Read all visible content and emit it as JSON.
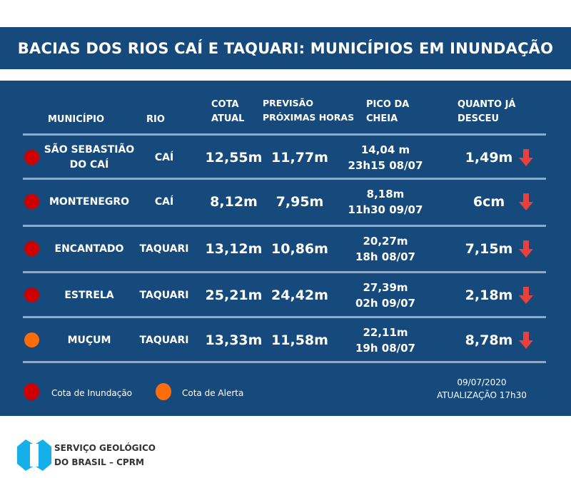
{
  "title": "BACIAS DOS RIOS CAÍ E TAQUARI: MUNICÍPIOS EM INUNDAÇÃO",
  "headers": {
    "municipio": "MUNICÍPIO",
    "rio": "RIO",
    "cota_1": "COTA",
    "cota_2": "ATUAL",
    "prev_1": "PREVISÃO",
    "prev_2": "PRÓXIMAS HORAS",
    "pico_1": "PICO DA",
    "pico_2": "CHEIA",
    "quanto_1": "QUANTO JÁ",
    "quanto_2": "DESCEU"
  },
  "rows": [
    {
      "municipio_1": "SÃO SEBASTIÃO",
      "municipio_2": "DO CAÍ",
      "rio": "CAÍ",
      "cota": "12,55m",
      "previsao": "11,77m",
      "pico_1": "14,04 m",
      "pico_2": "23h15 08/07",
      "desceu": "1,49m",
      "status": "inundacao"
    },
    {
      "municipio_1": "MONTENEGRO",
      "municipio_2": "",
      "rio": "CAÍ",
      "cota": "8,12m",
      "previsao": "7,95m",
      "pico_1": "8,18m",
      "pico_2": "11h30 09/07",
      "desceu": "6cm",
      "status": "inundacao"
    },
    {
      "municipio_1": "ENCANTADO",
      "municipio_2": "",
      "rio": "TAQUARI",
      "cota": "13,12m",
      "previsao": "10,86m",
      "pico_1": "20,27m",
      "pico_2": "18h 08/07",
      "desceu": "7,15m",
      "status": "inundacao"
    },
    {
      "municipio_1": "ESTRELA",
      "municipio_2": "",
      "rio": "TAQUARI",
      "cota": "25,21m",
      "previsao": "24,42m",
      "pico_1": "27,39m",
      "pico_2": "02h 09/07",
      "desceu": "2,18m",
      "status": "inundacao"
    },
    {
      "municipio_1": "MUÇUM",
      "municipio_2": "",
      "rio": "TAQUARI",
      "cota": "13,33m",
      "previsao": "11,58m",
      "pico_1": "22,11m",
      "pico_2": "19h 08/07",
      "desceu": "8,78m",
      "status": "alerta"
    }
  ],
  "legend": {
    "inundacao": "Cota de Inundação",
    "alerta": "Cota de Alerta"
  },
  "update": {
    "date": "09/07/2020",
    "time": "ATUALIZAÇÃO 17h30"
  },
  "footer": {
    "line1": "SERVIÇO GEOLÓGICO",
    "line2": "DO BRASIL – CPRM"
  },
  "colors": {
    "panel": "#174a7c",
    "inundacao": "#cc0000",
    "alerta": "#ff6d0a",
    "arrow": "#e8403a",
    "logo": "#15b0ea"
  }
}
